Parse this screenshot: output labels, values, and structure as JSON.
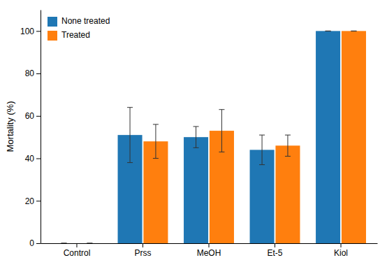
{
  "chart_data": {
    "type": "bar",
    "categories": [
      "Control",
      "Prss",
      "MeOH",
      "Et-5",
      "Kiol"
    ],
    "series": [
      {
        "name": "None treated",
        "values": [
          0,
          51,
          50,
          44,
          100
        ],
        "errors": [
          0,
          13,
          5,
          7,
          0
        ]
      },
      {
        "name": "Treated",
        "values": [
          0,
          48,
          53,
          46,
          100
        ],
        "errors": [
          0,
          8,
          10,
          5,
          0
        ]
      }
    ],
    "ylabel": "Mortality (%)",
    "ylim": [
      0,
      110
    ],
    "yticks": [
      0,
      20,
      40,
      60,
      80,
      100
    ],
    "legend": "top-left",
    "grid": false
  }
}
